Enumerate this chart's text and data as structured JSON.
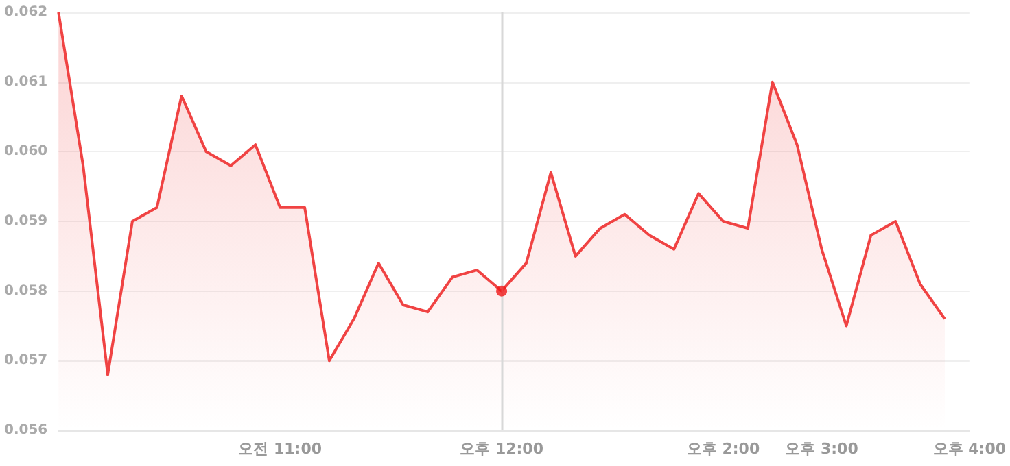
{
  "chart_data": {
    "type": "area",
    "categories": [
      null,
      null,
      null,
      null,
      null,
      null,
      null,
      null,
      null,
      "오전 11:00",
      null,
      null,
      null,
      null,
      null,
      null,
      null,
      null,
      "오후 12:00",
      null,
      null,
      null,
      null,
      null,
      null,
      null,
      null,
      "오후 2:00",
      null,
      null,
      null,
      "오후 3:00",
      null,
      null,
      null,
      null,
      null,
      "오후 4:00"
    ],
    "series": [
      {
        "color": "#f04343",
        "values": [
          0.062,
          0.0598,
          0.0568,
          0.059,
          0.0592,
          0.0608,
          0.06,
          0.0598,
          0.0601,
          0.0592,
          0.0592,
          0.057,
          0.0576,
          0.0584,
          0.0578,
          0.0577,
          0.0582,
          0.0583,
          0.058,
          0.0584,
          0.0597,
          0.0585,
          0.0589,
          0.0591,
          0.0588,
          0.0586,
          0.0594,
          0.059,
          0.0589,
          0.061,
          0.0601,
          0.0586,
          0.0575,
          0.0588,
          0.059,
          0.0581,
          0.0576,
          null
        ]
      },
      {
        "type": "scatter",
        "color": "#f01818",
        "x": [
          "오후 12:00"
        ],
        "values": [
          0.058
        ]
      }
    ],
    "ylim": [
      0.056,
      0.062
    ],
    "yticks": [
      0.056,
      0.057,
      0.058,
      0.059,
      {
        "value": 0.06,
        "label": "0.060"
      },
      0.061,
      0.062
    ],
    "grid": "y",
    "line_style": "solid",
    "ref_lines": [
      {
        "axis": "x",
        "value": "오후 12:00",
        "color": "#d8d8d8"
      }
    ]
  }
}
